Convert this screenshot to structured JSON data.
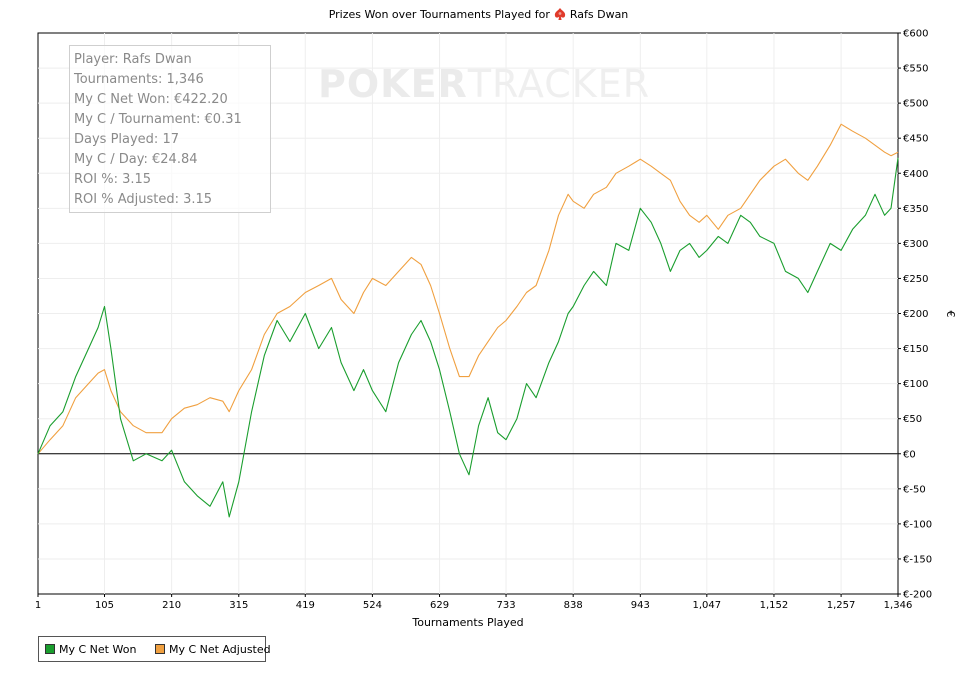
{
  "title": {
    "prefix": "Prizes Won over Tournaments Played for",
    "player": "Rafs Dwan"
  },
  "watermark": {
    "bold": "POKER",
    "light": "TRACKER"
  },
  "stats": [
    "Player: Rafs Dwan",
    "Tournaments: 1,346",
    "My C Net Won: €422.20",
    "My C / Tournament: €0.31",
    "Days Played: 17",
    "My C / Day: €24.84",
    "ROI %: 3.15",
    "ROI % Adjusted: 3.15"
  ],
  "legend": {
    "net_won": "My C Net Won",
    "net_adjusted": "My C Net Adjusted"
  },
  "colors": {
    "net_won": "#1a9e2e",
    "net_adjusted": "#f0a040",
    "zero_line": "#000000",
    "grid": "#eeeeee",
    "spade": "#e03a2a"
  },
  "chart_data": {
    "type": "line",
    "xlabel": "Tournaments Played",
    "ylabel": "€",
    "xlim": [
      1,
      1346
    ],
    "ylim": [
      -200,
      600
    ],
    "x_ticks": [
      "1",
      "105",
      "210",
      "315",
      "419",
      "524",
      "629",
      "733",
      "838",
      "943",
      "1,047",
      "1,152",
      "1,257",
      "1,346"
    ],
    "y_ticks": [
      "€600",
      "€550",
      "€500",
      "€450",
      "€400",
      "€350",
      "€300",
      "€250",
      "€200",
      "€150",
      "€100",
      "€50",
      "€0",
      "€-50",
      "€-100",
      "€-150",
      "€-200"
    ],
    "grid": true,
    "legend_position": "bottom-left",
    "series": [
      {
        "name": "My C Net Won",
        "x": [
          1,
          20,
          40,
          60,
          80,
          95,
          105,
          115,
          130,
          150,
          170,
          195,
          210,
          230,
          250,
          270,
          290,
          300,
          315,
          335,
          355,
          375,
          395,
          419,
          440,
          460,
          475,
          495,
          510,
          524,
          545,
          565,
          585,
          600,
          615,
          629,
          645,
          660,
          675,
          690,
          705,
          720,
          733,
          750,
          765,
          780,
          800,
          815,
          830,
          838,
          855,
          870,
          890,
          905,
          925,
          943,
          960,
          975,
          990,
          1005,
          1020,
          1035,
          1047,
          1065,
          1080,
          1100,
          1115,
          1130,
          1152,
          1170,
          1190,
          1205,
          1220,
          1240,
          1257,
          1275,
          1295,
          1310,
          1325,
          1335,
          1346
        ],
        "y": [
          0,
          40,
          60,
          110,
          150,
          180,
          210,
          150,
          50,
          -10,
          0,
          -10,
          5,
          -40,
          -60,
          -75,
          -40,
          -90,
          -40,
          60,
          140,
          190,
          160,
          200,
          150,
          180,
          130,
          90,
          120,
          90,
          60,
          130,
          170,
          190,
          160,
          120,
          60,
          0,
          -30,
          40,
          80,
          30,
          20,
          50,
          100,
          80,
          130,
          160,
          200,
          210,
          240,
          260,
          240,
          300,
          290,
          350,
          330,
          300,
          260,
          290,
          300,
          280,
          290,
          310,
          300,
          340,
          330,
          310,
          300,
          260,
          250,
          230,
          260,
          300,
          290,
          320,
          340,
          370,
          340,
          350,
          422
        ]
      },
      {
        "name": "My C Net Adjusted",
        "x": [
          1,
          20,
          40,
          60,
          80,
          95,
          105,
          115,
          130,
          150,
          170,
          195,
          210,
          230,
          250,
          270,
          290,
          300,
          315,
          335,
          355,
          375,
          395,
          419,
          440,
          460,
          475,
          495,
          510,
          524,
          545,
          565,
          585,
          600,
          615,
          629,
          645,
          660,
          675,
          690,
          705,
          720,
          733,
          750,
          765,
          780,
          800,
          815,
          830,
          838,
          855,
          870,
          890,
          905,
          925,
          943,
          960,
          975,
          990,
          1005,
          1020,
          1035,
          1047,
          1065,
          1080,
          1100,
          1115,
          1130,
          1152,
          1170,
          1190,
          1205,
          1220,
          1240,
          1257,
          1275,
          1295,
          1310,
          1325,
          1335,
          1346
        ],
        "y": [
          0,
          20,
          40,
          80,
          100,
          115,
          120,
          90,
          60,
          40,
          30,
          30,
          50,
          65,
          70,
          80,
          75,
          60,
          90,
          120,
          170,
          200,
          210,
          230,
          240,
          250,
          220,
          200,
          230,
          250,
          240,
          260,
          280,
          270,
          240,
          200,
          150,
          110,
          110,
          140,
          160,
          180,
          190,
          210,
          230,
          240,
          290,
          340,
          370,
          360,
          350,
          370,
          380,
          400,
          410,
          420,
          410,
          400,
          390,
          360,
          340,
          330,
          340,
          320,
          340,
          350,
          370,
          390,
          410,
          420,
          400,
          390,
          410,
          440,
          470,
          460,
          450,
          440,
          430,
          425,
          430
        ]
      }
    ]
  }
}
